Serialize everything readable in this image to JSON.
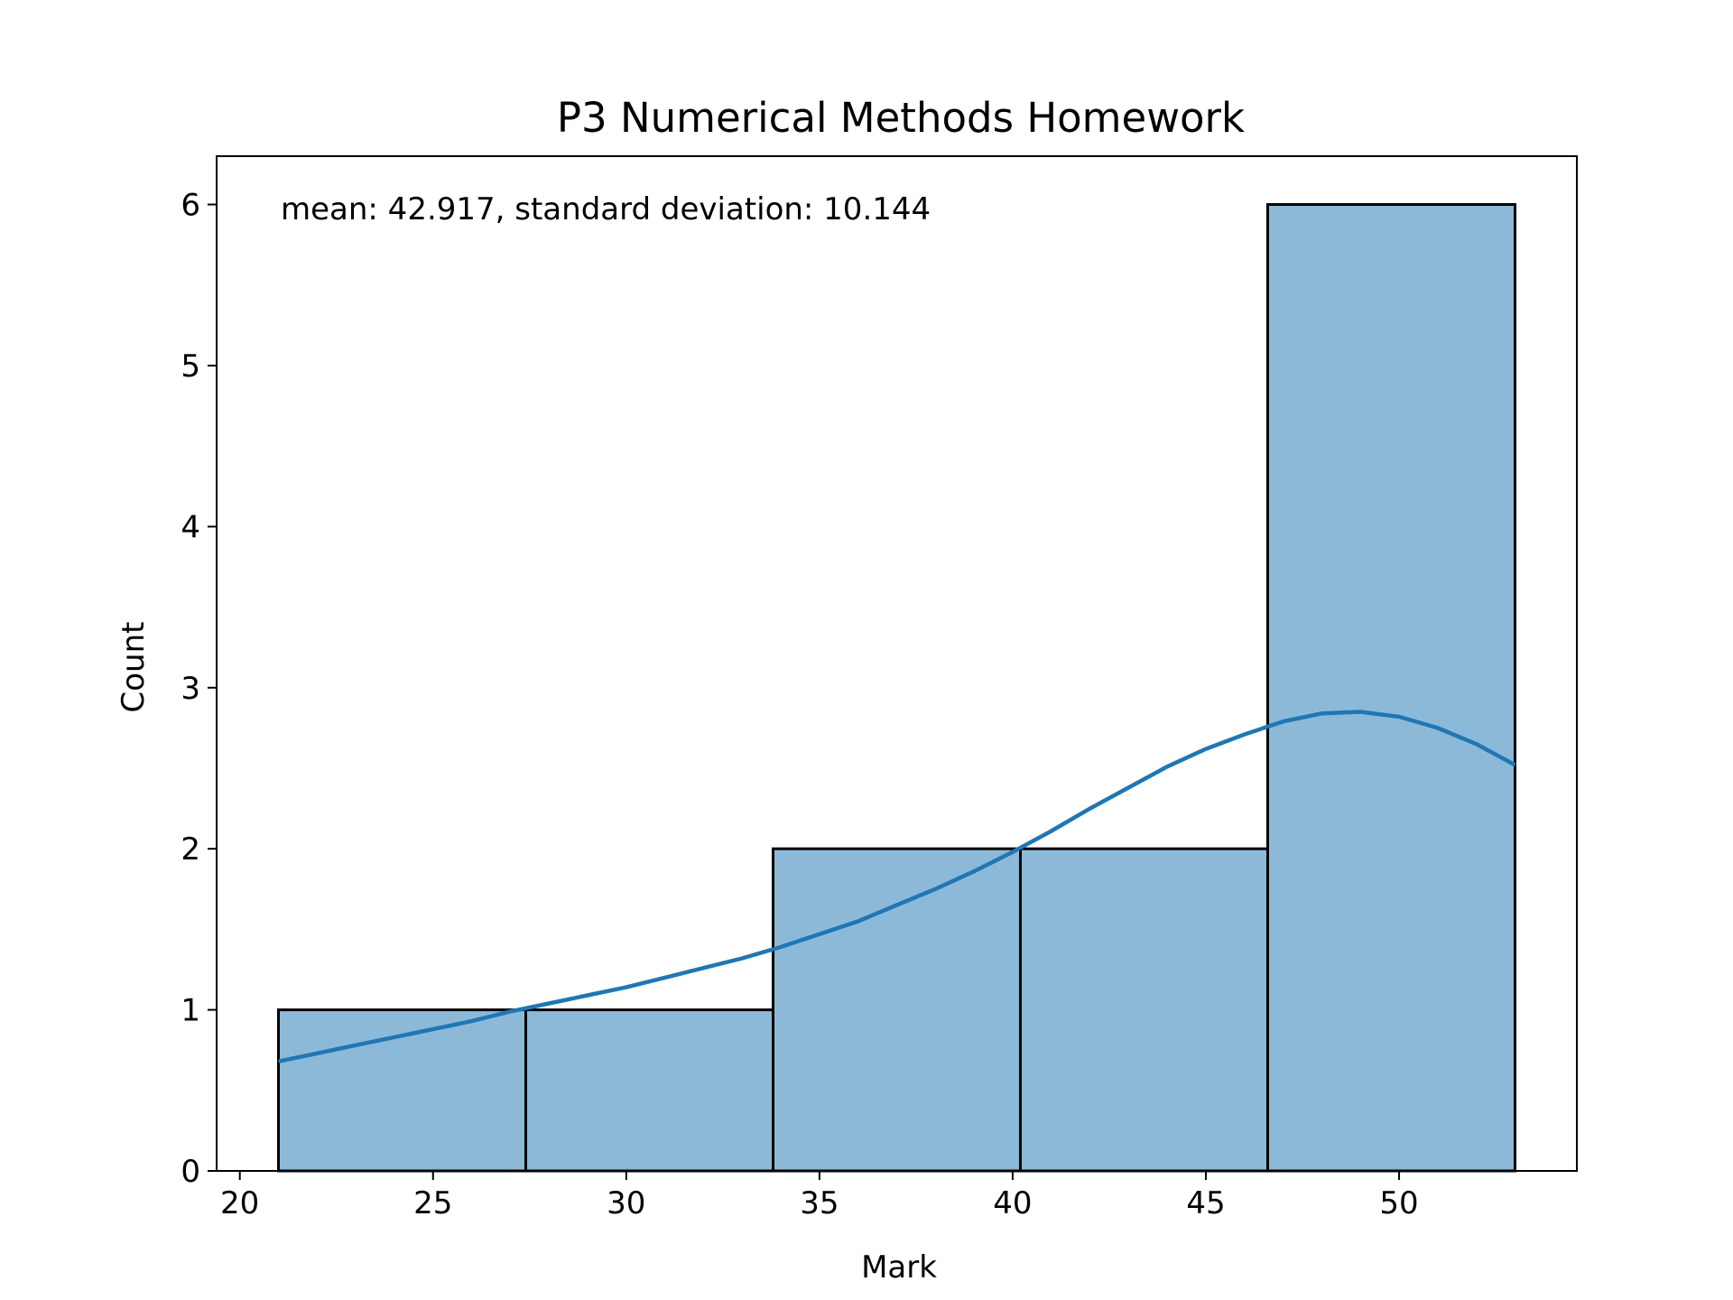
{
  "chart_data": {
    "type": "bar",
    "title": "P3 Numerical Methods Homework",
    "xlabel": "Mark",
    "ylabel": "Count",
    "annotation": "mean: 42.917, standard deviation: 10.144",
    "bins": [
      {
        "x0": 21.0,
        "x1": 27.4,
        "count": 1
      },
      {
        "x0": 27.4,
        "x1": 33.8,
        "count": 1
      },
      {
        "x0": 33.8,
        "x1": 40.2,
        "count": 2
      },
      {
        "x0": 40.2,
        "x1": 46.6,
        "count": 2
      },
      {
        "x0": 46.6,
        "x1": 53.0,
        "count": 6
      }
    ],
    "kde": {
      "x": [
        21,
        22,
        23,
        24,
        25,
        26,
        27,
        28,
        29,
        30,
        31,
        32,
        33,
        34,
        35,
        36,
        37,
        38,
        39,
        40,
        41,
        42,
        43,
        44,
        45,
        46,
        47,
        48,
        49,
        50,
        51,
        52,
        53
      ],
      "y": [
        0.68,
        0.73,
        0.78,
        0.83,
        0.88,
        0.93,
        0.99,
        1.04,
        1.09,
        1.14,
        1.2,
        1.26,
        1.32,
        1.39,
        1.47,
        1.55,
        1.65,
        1.75,
        1.86,
        1.98,
        2.11,
        2.25,
        2.38,
        2.51,
        2.62,
        2.71,
        2.79,
        2.84,
        2.85,
        2.82,
        2.75,
        2.65,
        2.52
      ]
    },
    "xticks": [
      20,
      25,
      30,
      35,
      40,
      45,
      50
    ],
    "yticks": [
      0,
      1,
      2,
      3,
      4,
      5,
      6
    ],
    "xlim": [
      19.4,
      54.6
    ],
    "ylim": [
      0,
      6.3
    ],
    "colors": {
      "bar_fill": "#8db9d9",
      "bar_edge": "#000000",
      "kde_line": "#1f77b4"
    }
  }
}
